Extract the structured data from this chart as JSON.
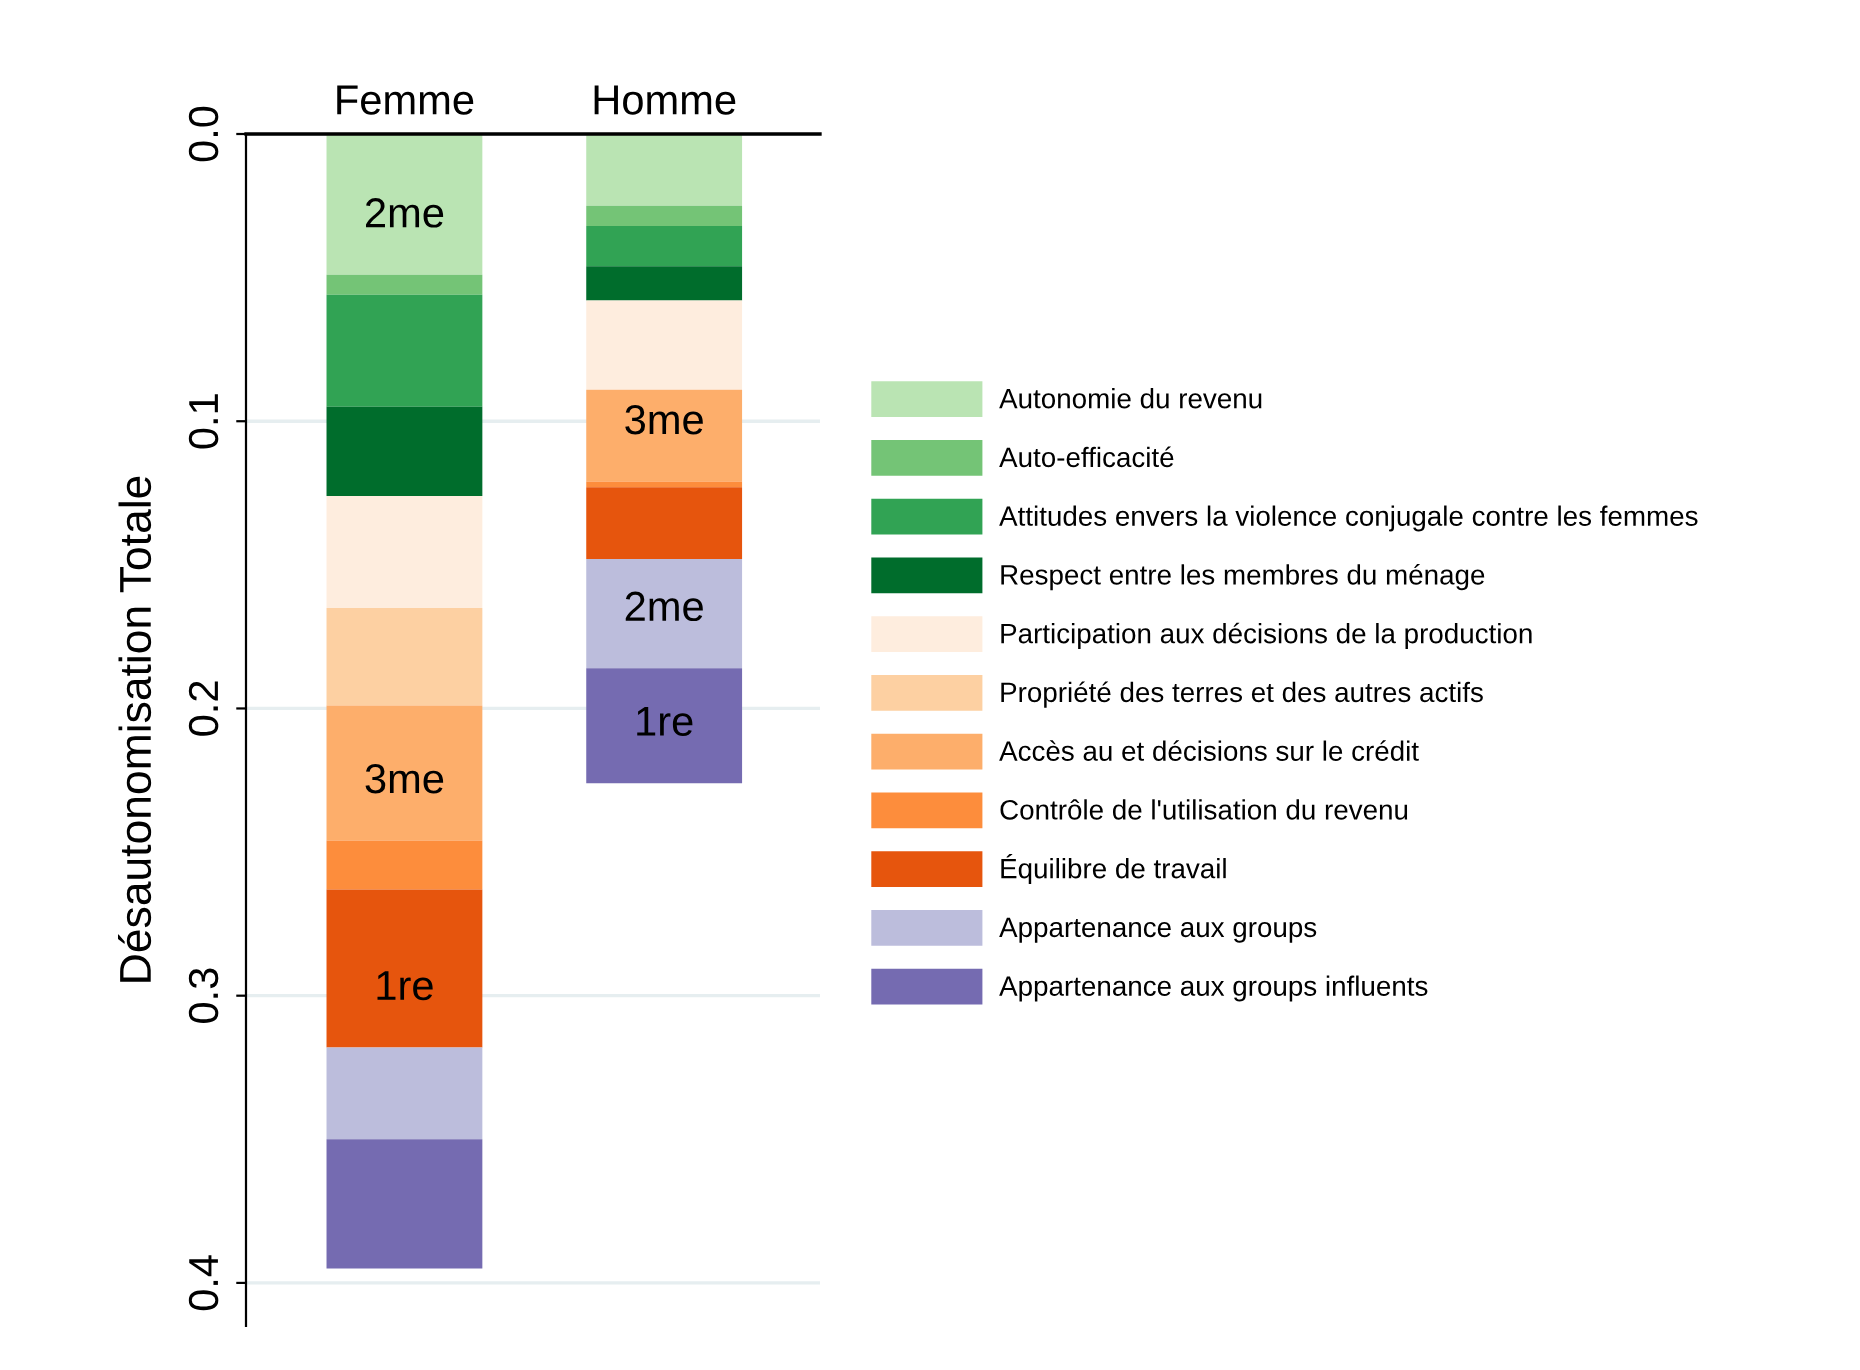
{
  "chart_data": {
    "type": "bar",
    "stacked": true,
    "categories": [
      "Femme",
      "Homme"
    ],
    "ylabel": "Désautonomisation Totale",
    "ylim": [
      0.415,
      0
    ],
    "yticks": [
      {
        "value": 0,
        "label": "0.0"
      },
      0.1,
      0.2,
      0.3,
      0.4
    ],
    "grid": "y",
    "legend": "right",
    "series": [
      {
        "name": "Autonomie du revenu",
        "color": "#bae4b3",
        "values": [
          0.049,
          0.025
        ]
      },
      {
        "name": "Auto-efficacité",
        "color": "#74c476",
        "values": [
          0.007,
          0.007
        ]
      },
      {
        "name": "Attitudes envers la violence conjugale contre les femmes",
        "color": "#31a354",
        "values": [
          0.039,
          0.014
        ]
      },
      {
        "name": "Respect entre les membres du ménage",
        "color": "#006d2c",
        "values": [
          0.031,
          0.012
        ]
      },
      {
        "name": "Participation aux décisions de la production",
        "color": "#feedde",
        "values": [
          0.039,
          0.031
        ]
      },
      {
        "name": "Propriété des terres et des autres actifs",
        "color": "#fdd0a2",
        "values": [
          0.034,
          0
        ]
      },
      {
        "name": "Accès au et décisions sur le crédit",
        "color": "#fdae6b",
        "values": [
          0.047,
          0.032
        ]
      },
      {
        "name": "Contrôle de l'utilisation du revenu",
        "color": "#fd8d3c",
        "values": [
          0.017,
          0.002
        ]
      },
      {
        "name": "Équilibre de travail",
        "color": "#e6550d",
        "values": [
          0.055,
          0.025
        ]
      },
      {
        "name": "Appartenance aux groups",
        "color": "#bcbddc",
        "values": [
          0.032,
          0.038
        ]
      },
      {
        "name": "Appartenance aux groups influents",
        "color": "#756bb1",
        "values": [
          0.045,
          0.04
        ]
      }
    ],
    "annotations": [
      {
        "text": "2me",
        "x": "Femme",
        "y": 0.049
      },
      {
        "text": "3me",
        "x": "Femme",
        "y": 0.246
      },
      {
        "text": "1re",
        "x": "Femme",
        "y": 0.318
      },
      {
        "text": "3me",
        "x": "Homme",
        "y": 0.121
      },
      {
        "text": "2me",
        "x": "Homme",
        "y": 0.186
      },
      {
        "text": "1re",
        "x": "Homme",
        "y": 0.226
      }
    ]
  }
}
